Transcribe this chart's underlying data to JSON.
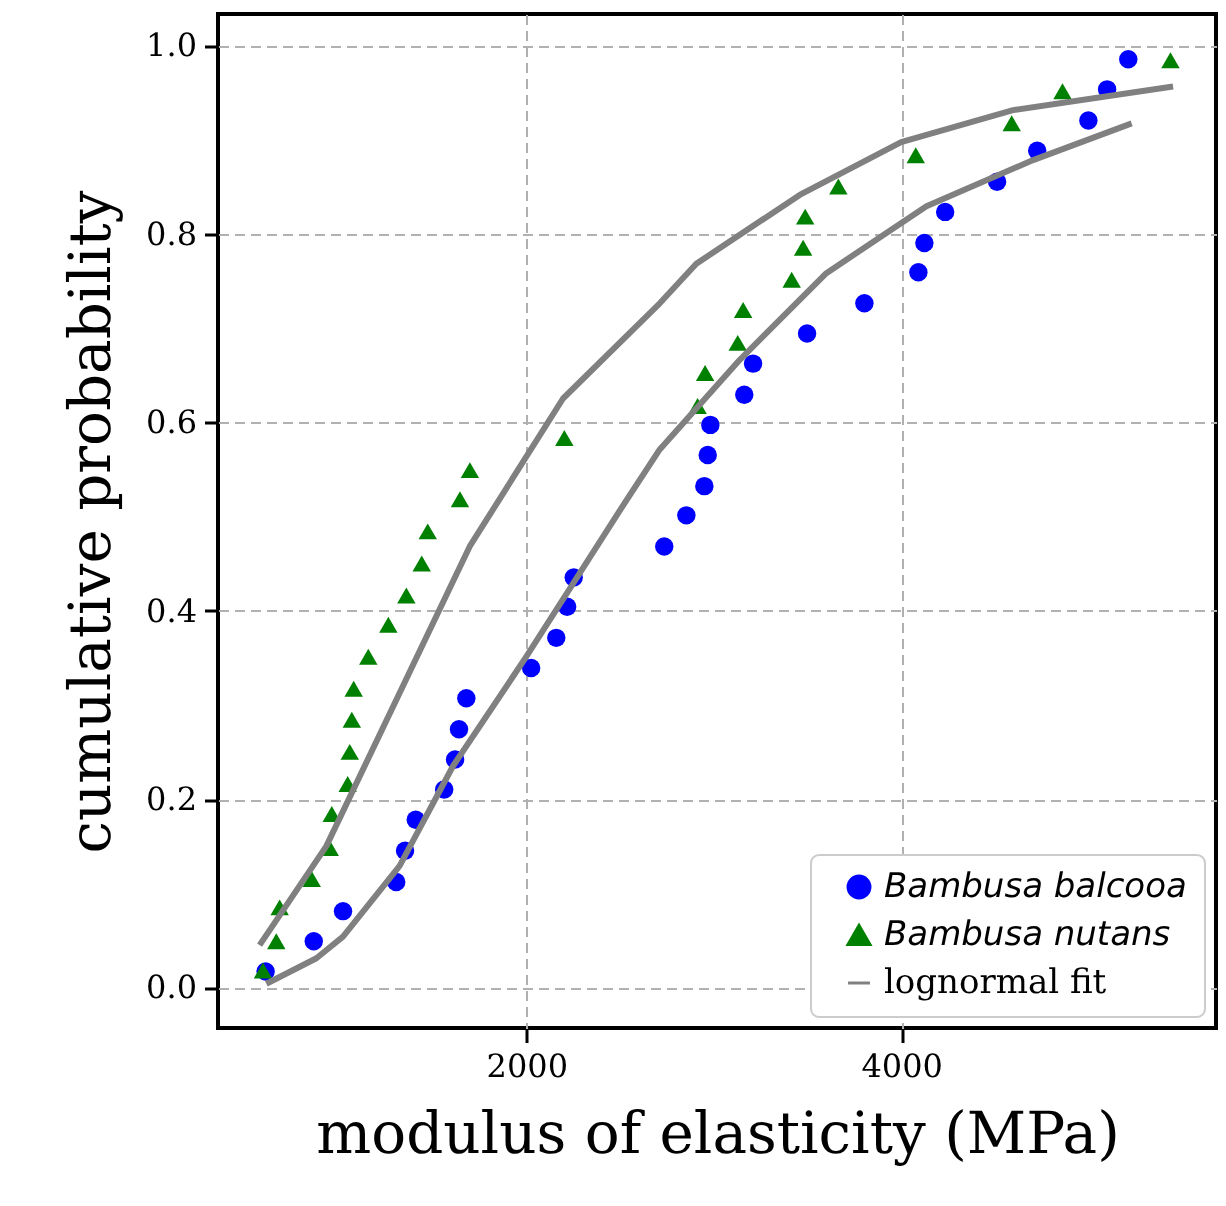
{
  "chart_data": {
    "type": "scatter",
    "xlabel": "modulus of elasticity (MPa)",
    "ylabel": "cumulative probability",
    "xlim": [
      355,
      5680
    ],
    "xticks": [
      2000,
      4000
    ],
    "ylim": [
      -0.043,
      1.033
    ],
    "yticks": [
      {
        "value": 0,
        "label": "0.0"
      },
      {
        "value": 0.2,
        "label": "0.2"
      },
      {
        "value": 0.4,
        "label": "0.4"
      },
      {
        "value": 0.6,
        "label": "0.6"
      },
      {
        "value": 0.8,
        "label": "0.8"
      },
      {
        "value": 1,
        "label": "1.0"
      }
    ],
    "grid": true,
    "legend": "bottom right",
    "series": [
      {
        "name": "Bambusa balcooa",
        "marker": "circle",
        "color": "#0000ff",
        "x": [
          609,
          866,
          1022,
          1306,
          1353,
          1410,
          1562,
          1620,
          1641,
          1680,
          2026,
          2160,
          2218,
          2253,
          2736,
          2854,
          2950,
          2968,
          2982,
          3163,
          3210,
          3498,
          3804,
          4092,
          4124,
          4235,
          4512,
          4726,
          4999,
          5099,
          5212
        ],
        "values": [
          0.017,
          0.049,
          0.081,
          0.112,
          0.145,
          0.178,
          0.21,
          0.242,
          0.274,
          0.307,
          0.339,
          0.371,
          0.404,
          0.435,
          0.468,
          0.501,
          0.532,
          0.565,
          0.597,
          0.629,
          0.662,
          0.694,
          0.726,
          0.759,
          0.79,
          0.823,
          0.855,
          0.888,
          0.92,
          0.953,
          0.985
        ]
      },
      {
        "name": "Bambusa nutans",
        "marker": "triangle",
        "color": "#008000",
        "x": [
          595,
          666,
          684,
          855,
          951,
          962,
          1047,
          1058,
          1069,
          1079,
          1157,
          1264,
          1360,
          1442,
          1474,
          1646,
          1699,
          2203,
          2914,
          2954,
          3128,
          3157,
          3416,
          3477,
          3488,
          3665,
          4078,
          4590,
          4861,
          5437
        ],
        "values": [
          0.018,
          0.049,
          0.085,
          0.115,
          0.148,
          0.184,
          0.216,
          0.25,
          0.284,
          0.317,
          0.351,
          0.385,
          0.416,
          0.45,
          0.484,
          0.518,
          0.549,
          0.583,
          0.617,
          0.652,
          0.684,
          0.719,
          0.751,
          0.785,
          0.818,
          0.85,
          0.883,
          0.917,
          0.951,
          0.984
        ]
      },
      {
        "name": "lognormal fit",
        "type": "line",
        "color": "#808080",
        "x": [
          577,
          933,
          1698,
          2196,
          2712,
          2907,
          3459,
          4000,
          4597,
          5451
        ],
        "values": [
          0.045,
          0.15,
          0.468,
          0.625,
          0.726,
          0.768,
          0.841,
          0.897,
          0.931,
          0.956
        ]
      },
      {
        "type": "line",
        "color": "#808080",
        "x": [
          613,
          880,
          1022,
          1324,
          1609,
          2000,
          2534,
          2712,
          3139,
          3601,
          4135,
          4704,
          5230
        ],
        "values": [
          0.004,
          0.031,
          0.054,
          0.129,
          0.235,
          0.351,
          0.517,
          0.571,
          0.666,
          0.758,
          0.829,
          0.878,
          0.917
        ]
      }
    ]
  }
}
